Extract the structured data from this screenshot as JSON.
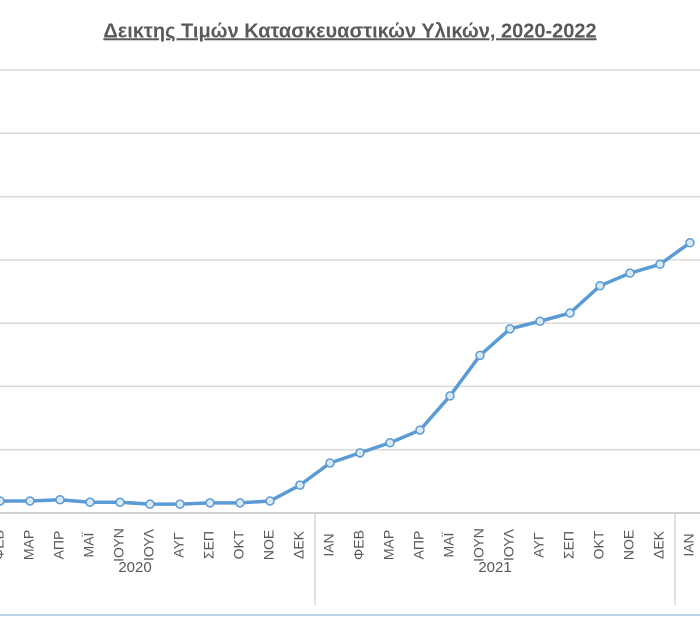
{
  "chart_data": {
    "type": "line",
    "title": "Δεικτης Τιμών Κατασκευαστικών Υλικών, 2020-2022",
    "categories": [
      "ΦΕΒ",
      "ΜΑΡ",
      "ΑΠΡ",
      "ΜΑΪ",
      "ΙΟΥΝ",
      "ΙΟΥΛ",
      "ΑΥΓ",
      "ΣΕΠ",
      "ΟΚΤ",
      "ΝΟΕ",
      "ΔΕΚ",
      "ΙΑΝ",
      "ΦΕΒ",
      "ΜΑΡ",
      "ΑΠΡ",
      "ΜΑΪ",
      "ΙΟΥΝ",
      "ΙΟΥΛ",
      "ΑΥΓ",
      "ΣΕΠ",
      "ΟΚΤ",
      "ΝΟΕ",
      "ΔΕΚ",
      "ΙΑΝ"
    ],
    "groups": [
      "2020",
      "2021"
    ],
    "series": [
      {
        "color": "#5b9bd5",
        "values": [
          0.19,
          0.19,
          0.21,
          0.17,
          0.17,
          0.14,
          0.14,
          0.16,
          0.16,
          0.19,
          0.44,
          0.79,
          0.95,
          1.11,
          1.31,
          1.85,
          2.49,
          2.91,
          3.03,
          3.16,
          3.59,
          3.79,
          3.93,
          4.27
        ]
      }
    ],
    "ylim": [
      0,
      7
    ],
    "yticks": [
      0,
      1,
      2,
      3,
      4,
      5,
      6,
      7
    ],
    "grid": true
  }
}
